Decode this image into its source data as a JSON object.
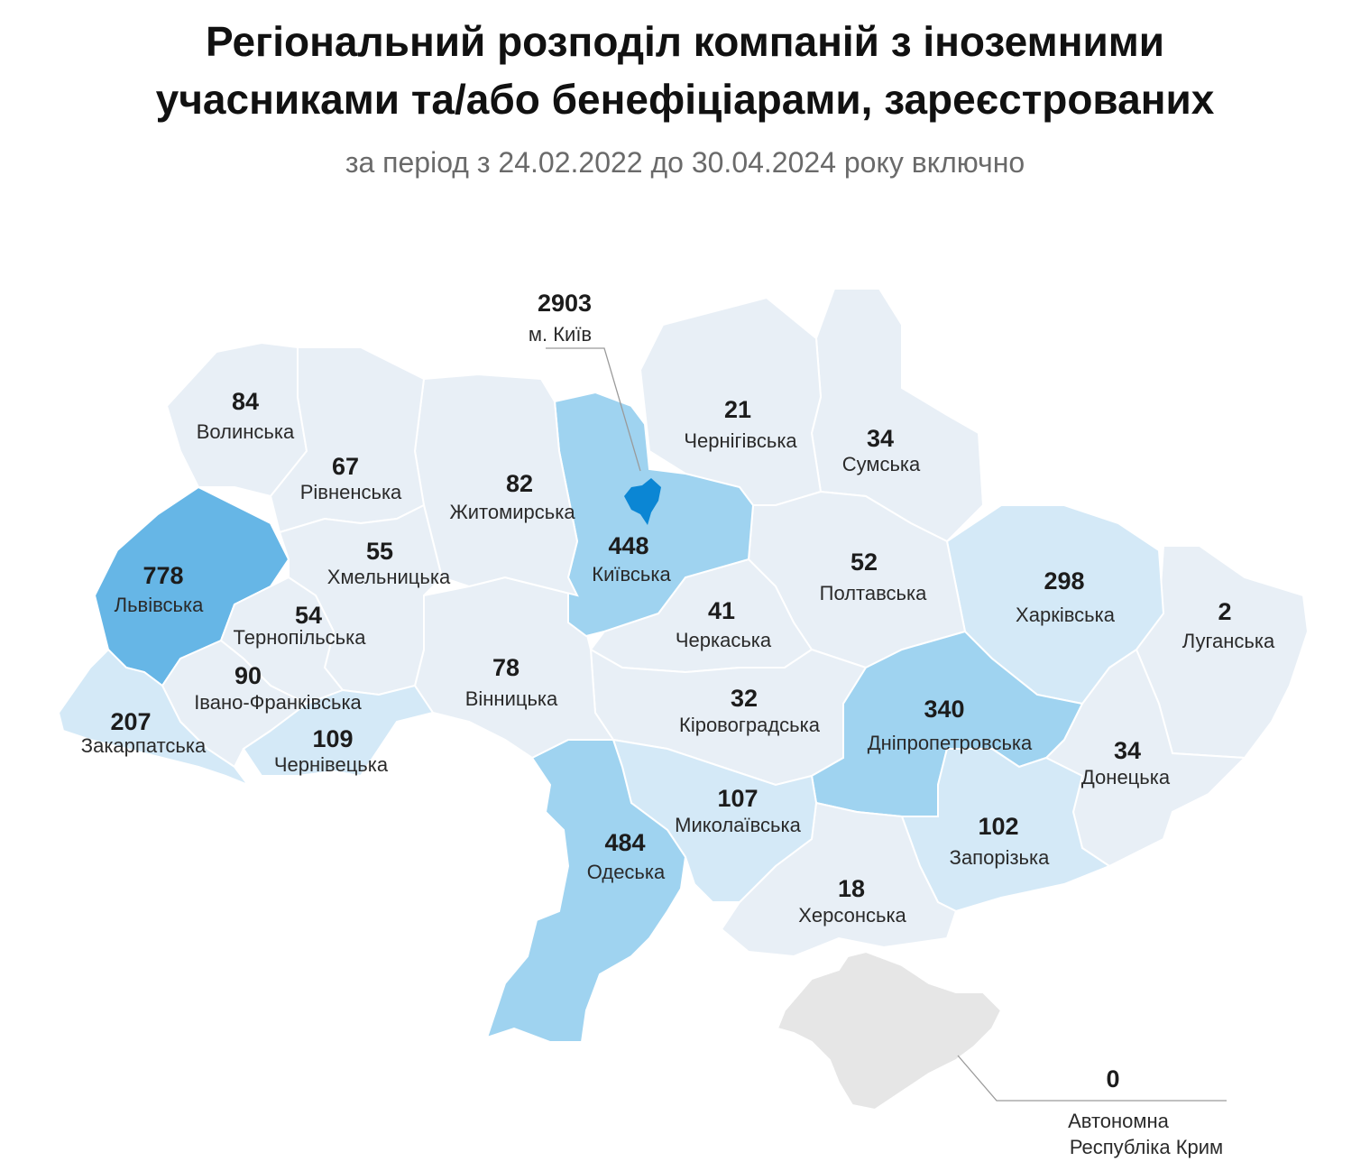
{
  "title_line1": "Регіональний розподіл компаній з іноземними",
  "title_line2": "учасниками та/або бенефіціарами, зареєстрованих",
  "subtitle": "за період з 24.02.2022 до 30.04.2024 року включно",
  "colors": {
    "level_0": "#e6e6e6",
    "level_1": "#e8eff6",
    "level_2": "#d4e9f7",
    "level_3": "#9fd3f0",
    "level_4": "#66b6e6",
    "level_5": "#0b86d4",
    "grid_line": "#d3dae2",
    "leader_line": "#9a9a9a"
  },
  "regions": [
    {
      "id": "volyn",
      "name": "Волинська",
      "value": "84"
    },
    {
      "id": "rivne",
      "name": "Рівненська",
      "value": "67"
    },
    {
      "id": "zhytomyr",
      "name": "Житомирська",
      "value": "82"
    },
    {
      "id": "kyivska",
      "name": "Київська",
      "value": "448"
    },
    {
      "id": "kyiv_city",
      "name": "м. Київ",
      "value": "2903"
    },
    {
      "id": "chernihiv",
      "name": "Чернігівська",
      "value": "21"
    },
    {
      "id": "sumy",
      "name": "Сумська",
      "value": "34"
    },
    {
      "id": "lviv",
      "name": "Львівська",
      "value": "778"
    },
    {
      "id": "khmelnytskyi",
      "name": "Хмельницька",
      "value": "55"
    },
    {
      "id": "ternopil",
      "name": "Тернопільська",
      "value": "54"
    },
    {
      "id": "ivano_frankivsk",
      "name": "Івано-Франківська",
      "value": "90"
    },
    {
      "id": "zakarpattia",
      "name": "Закарпатська",
      "value": "207"
    },
    {
      "id": "chernivtsi",
      "name": "Чернівецька",
      "value": "109"
    },
    {
      "id": "vinnytsia",
      "name": "Вінницька",
      "value": "78"
    },
    {
      "id": "cherkasy",
      "name": "Черкаська",
      "value": "41"
    },
    {
      "id": "poltava",
      "name": "Полтавська",
      "value": "52"
    },
    {
      "id": "kharkiv",
      "name": "Харківська",
      "value": "298"
    },
    {
      "id": "luhansk",
      "name": "Луганська",
      "value": "2"
    },
    {
      "id": "kirovohrad",
      "name": "Кіровоградська",
      "value": "32"
    },
    {
      "id": "dnipro",
      "name": "Дніпропетровська",
      "value": "340"
    },
    {
      "id": "donetsk",
      "name": "Донецька",
      "value": "34"
    },
    {
      "id": "odesa",
      "name": "Одеська",
      "value": "484"
    },
    {
      "id": "mykolaiv",
      "name": "Миколаївська",
      "value": "107"
    },
    {
      "id": "zaporizhzhia",
      "name": "Запорізька",
      "value": "102"
    },
    {
      "id": "kherson",
      "name": "Херсонська",
      "value": "18"
    },
    {
      "id": "crimea",
      "name_line1": "Автономна",
      "name_line2": "Республіка Крим",
      "value": "0"
    }
  ]
}
